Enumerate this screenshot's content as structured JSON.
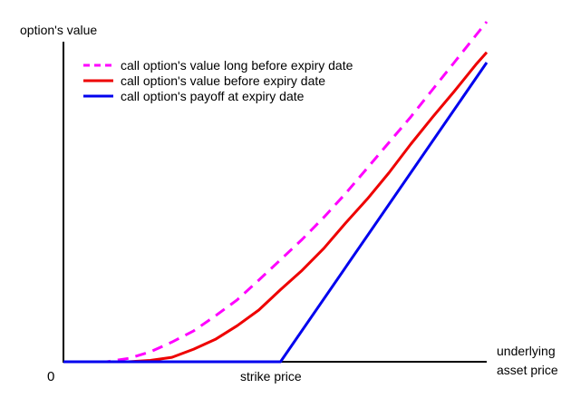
{
  "chart_data": {
    "type": "line",
    "ylabel": "option's value",
    "xlabel_lines": [
      "underlying",
      "asset price"
    ],
    "origin_label": "0",
    "strike_label": "strike price",
    "strike": 1.0,
    "xlim": [
      0,
      1.95
    ],
    "ylim": [
      0,
      1.0
    ],
    "legend": "top-left",
    "series": [
      {
        "name": "call option's value long before expiry date",
        "color": "#ff00ff",
        "style": "dashed",
        "x": [
          0,
          0.1,
          0.2,
          0.3,
          0.4,
          0.5,
          0.6,
          0.7,
          0.8,
          0.9,
          1.0,
          1.1,
          1.2,
          1.3,
          1.4,
          1.5,
          1.6,
          1.7,
          1.8,
          1.9,
          1.95
        ],
        "y": [
          0,
          0.0,
          0.0,
          0.01,
          0.029,
          0.058,
          0.091,
          0.135,
          0.182,
          0.24,
          0.3,
          0.36,
          0.425,
          0.495,
          0.57,
          0.645,
          0.72,
          0.8,
          0.88,
          0.96,
          1.0
        ]
      },
      {
        "name": "call option's value before expiry date",
        "color": "#ee0000",
        "style": "solid",
        "x": [
          0,
          0.2,
          0.3,
          0.4,
          0.5,
          0.6,
          0.7,
          0.8,
          0.9,
          1.0,
          1.1,
          1.2,
          1.3,
          1.4,
          1.5,
          1.6,
          1.7,
          1.8,
          1.9,
          1.95
        ],
        "y": [
          0,
          0.0,
          0.0,
          0.004,
          0.013,
          0.037,
          0.066,
          0.106,
          0.152,
          0.212,
          0.269,
          0.334,
          0.408,
          0.479,
          0.556,
          0.64,
          0.719,
          0.795,
          0.874,
          0.91
        ]
      },
      {
        "name": "call option's payoff at expiry date",
        "color": "#0000ee",
        "style": "solid",
        "x": [
          0,
          1.0,
          1.95
        ],
        "y": [
          0,
          0,
          0.88
        ]
      }
    ]
  }
}
